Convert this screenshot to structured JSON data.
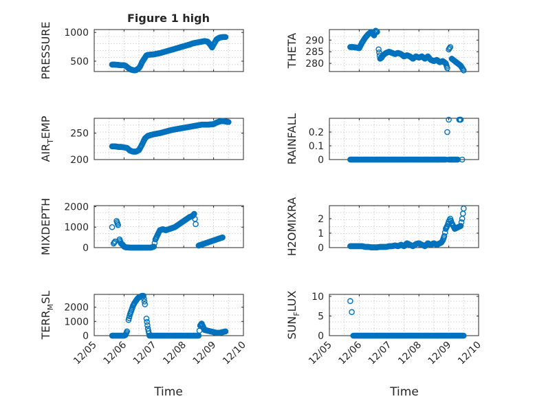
{
  "figure": {
    "title": "Figure 1 high"
  },
  "x_ticks": [
    "12/05",
    "12/06",
    "12/07",
    "12/08",
    "12/09",
    "12/10"
  ],
  "x_label": "Time",
  "colors": {
    "marker": "#0072BD",
    "axes": "#262626",
    "grid": "#cfcfcf"
  },
  "chart_data": [
    {
      "type": "scatter",
      "title": "Figure 1 high",
      "ylabel": "PRESSURE",
      "ylabel_sub": "",
      "ylabel_tail": "",
      "xlim": [
        0,
        5
      ],
      "ylim": [
        320,
        1050
      ],
      "yticks": [
        500,
        1000
      ],
      "grid": true,
      "x": [
        0.6,
        0.7,
        0.8,
        0.9,
        1.0,
        1.05,
        1.1,
        1.2,
        1.3,
        1.35,
        1.4,
        1.5,
        1.55,
        1.6,
        1.7,
        1.75,
        1.8,
        1.9,
        2.0,
        2.2,
        2.4,
        2.6,
        2.8,
        3.0,
        3.2,
        3.3,
        3.4,
        3.5,
        3.6,
        3.7,
        3.8,
        3.9,
        3.95,
        4.0,
        4.1,
        4.2,
        4.3,
        4.4
      ],
      "y": [
        440,
        440,
        435,
        430,
        430,
        420,
        400,
        360,
        345,
        340,
        345,
        380,
        420,
        480,
        560,
        600,
        610,
        615,
        620,
        640,
        670,
        700,
        730,
        760,
        790,
        810,
        820,
        830,
        840,
        850,
        840,
        780,
        740,
        790,
        880,
        910,
        920,
        920
      ]
    },
    {
      "type": "scatter",
      "title": "",
      "ylabel": "THETA",
      "ylabel_sub": "",
      "ylabel_tail": "",
      "xlim": [
        0,
        5
      ],
      "ylim": [
        276.5,
        294.5
      ],
      "yticks": [
        280,
        285,
        290
      ],
      "grid": true,
      "x": [
        0.7,
        0.8,
        0.9,
        1.0,
        1.1,
        1.2,
        1.3,
        1.4,
        1.5,
        1.55,
        1.6,
        1.65,
        1.7,
        1.75,
        1.8,
        1.9,
        2.0,
        2.1,
        2.2,
        2.3,
        2.4,
        2.5,
        2.6,
        2.7,
        2.8,
        2.9,
        3.0,
        3.1,
        3.2,
        3.3,
        3.4,
        3.5,
        3.6,
        3.7,
        3.8,
        3.9,
        3.95,
        4.0,
        4.05,
        4.1,
        4.2,
        4.3,
        4.4,
        4.45,
        4.5
      ],
      "y": [
        287,
        287,
        286.8,
        286.5,
        289,
        291,
        292.5,
        293.5,
        292,
        294,
        293.5,
        286,
        282,
        282.5,
        283.5,
        284.5,
        285,
        284.5,
        284,
        284.5,
        284,
        283,
        283.5,
        283,
        282,
        283,
        282.5,
        283,
        282,
        283,
        281.5,
        281,
        281.5,
        280.5,
        281,
        280,
        278,
        286,
        287,
        282,
        281,
        280,
        279,
        278,
        277
      ]
    },
    {
      "type": "scatter",
      "title": "",
      "ylabel": "AIR",
      "ylabel_sub": "T",
      "ylabel_tail": "EMP",
      "xlim": [
        0,
        5
      ],
      "ylim": [
        200,
        278
      ],
      "yticks": [
        200,
        250
      ],
      "grid": true,
      "x": [
        0.6,
        0.7,
        0.8,
        0.9,
        1.0,
        1.1,
        1.2,
        1.3,
        1.4,
        1.5,
        1.6,
        1.7,
        1.8,
        2.0,
        2.2,
        2.4,
        2.6,
        2.8,
        3.0,
        3.2,
        3.4,
        3.6,
        3.8,
        4.0,
        4.1,
        4.2,
        4.3,
        4.4,
        4.5
      ],
      "y": [
        225,
        225,
        224,
        224,
        223,
        222,
        217,
        215,
        215,
        218,
        228,
        240,
        245,
        248,
        250,
        253,
        256,
        258,
        260,
        262,
        264,
        266,
        266,
        267,
        270,
        272,
        273,
        272,
        271
      ]
    },
    {
      "type": "scatter",
      "title": "",
      "ylabel": "RAINFALL",
      "ylabel_sub": "",
      "ylabel_tail": "",
      "xlim": [
        0,
        5
      ],
      "ylim": [
        0,
        0.3
      ],
      "yticks": [
        0,
        0.1,
        0.2
      ],
      "grid": true,
      "x": [
        0.7,
        0.8,
        0.9,
        1.0,
        1.1,
        1.2,
        1.3,
        1.4,
        1.5,
        1.6,
        1.7,
        1.8,
        1.9,
        2.0,
        2.1,
        2.2,
        2.3,
        2.4,
        2.5,
        2.6,
        2.7,
        2.8,
        2.9,
        3.0,
        3.1,
        3.2,
        3.3,
        3.4,
        3.5,
        3.6,
        3.7,
        3.8,
        3.9,
        3.95,
        4.0,
        4.0,
        4.1,
        4.2,
        4.3,
        4.35,
        4.4,
        4.45
      ],
      "y": [
        0,
        0,
        0,
        0,
        0,
        0,
        0,
        0,
        0,
        0,
        0,
        0,
        0,
        0,
        0,
        0,
        0,
        0,
        0,
        0,
        0,
        0,
        0,
        0,
        0,
        0,
        0,
        0,
        0,
        0,
        0,
        0,
        0,
        0.2,
        0.29,
        0,
        0,
        0,
        0,
        0.29,
        0.29,
        0
      ]
    },
    {
      "type": "scatter",
      "title": "",
      "ylabel": "MIXDEPTH",
      "ylabel_sub": "",
      "ylabel_tail": "",
      "xlim": [
        0,
        5
      ],
      "ylim": [
        0,
        2050
      ],
      "yticks": [
        0,
        1000,
        2000
      ],
      "grid": true,
      "x": [
        0.6,
        0.65,
        0.7,
        0.75,
        0.8,
        0.85,
        0.9,
        0.95,
        1.0,
        1.05,
        1.1,
        1.2,
        1.3,
        1.4,
        1.5,
        1.6,
        1.7,
        1.8,
        1.9,
        2.0,
        2.05,
        2.1,
        2.2,
        2.3,
        2.4,
        2.5,
        2.6,
        2.7,
        2.8,
        2.9,
        3.0,
        3.1,
        3.2,
        3.3,
        3.35,
        3.4,
        3.5,
        3.6,
        3.7,
        3.8,
        3.9,
        4.0,
        4.1,
        4.2,
        4.3
      ],
      "y": [
        1000,
        200,
        300,
        1300,
        1100,
        400,
        200,
        150,
        50,
        20,
        10,
        0,
        0,
        0,
        0,
        0,
        0,
        0,
        0,
        50,
        400,
        550,
        850,
        900,
        850,
        900,
        950,
        1000,
        1100,
        1200,
        1300,
        1400,
        1500,
        1550,
        1650,
        1150,
        100,
        150,
        200,
        250,
        300,
        350,
        400,
        450,
        500
      ]
    },
    {
      "type": "scatter",
      "title": "",
      "ylabel": "H2OMIXRA",
      "ylabel_sub": "",
      "ylabel_tail": "",
      "xlim": [
        0,
        5
      ],
      "ylim": [
        0,
        2.9
      ],
      "yticks": [
        0,
        1,
        2
      ],
      "grid": true,
      "x": [
        0.7,
        0.8,
        0.9,
        1.0,
        1.1,
        1.2,
        1.3,
        1.4,
        1.5,
        1.6,
        1.7,
        1.8,
        1.9,
        2.0,
        2.1,
        2.2,
        2.3,
        2.4,
        2.5,
        2.6,
        2.7,
        2.8,
        2.9,
        3.0,
        3.1,
        3.2,
        3.3,
        3.4,
        3.5,
        3.6,
        3.7,
        3.75,
        3.8,
        3.85,
        3.9,
        3.95,
        4.0,
        4.05,
        4.1,
        4.15,
        4.2,
        4.3,
        4.4,
        4.45,
        4.5
      ],
      "y": [
        0.1,
        0.1,
        0.1,
        0.1,
        0.1,
        0.05,
        0.05,
        0.02,
        0.02,
        0.02,
        0.05,
        0.05,
        0.05,
        0.1,
        0.1,
        0.15,
        0.1,
        0.2,
        0.1,
        0.3,
        0.2,
        0.1,
        0.25,
        0.3,
        0.2,
        0.1,
        0.3,
        0.2,
        0.3,
        0.2,
        0.3,
        0.35,
        0.5,
        0.8,
        1.3,
        1.5,
        1.8,
        2.0,
        1.7,
        1.5,
        1.3,
        1.4,
        1.5,
        2.0,
        2.7
      ]
    },
    {
      "type": "scatter",
      "title": "",
      "ylabel": "TERR",
      "ylabel_sub": "M",
      "ylabel_tail": "SL",
      "xlim": [
        0,
        5
      ],
      "ylim": [
        0,
        2900
      ],
      "yticks": [
        0,
        1000,
        2000
      ],
      "grid": true,
      "x": [
        0.6,
        0.7,
        0.8,
        0.9,
        1.0,
        1.05,
        1.1,
        1.15,
        1.2,
        1.25,
        1.3,
        1.35,
        1.4,
        1.45,
        1.5,
        1.55,
        1.6,
        1.65,
        1.7,
        1.75,
        1.8,
        1.85,
        1.9,
        2.0,
        2.2,
        2.4,
        2.6,
        2.8,
        3.0,
        3.2,
        3.4,
        3.5,
        3.55,
        3.6,
        3.7,
        3.8,
        3.9,
        4.0,
        4.1,
        4.2,
        4.3,
        4.4
      ],
      "y": [
        0,
        0,
        0,
        0,
        0,
        50,
        300,
        1100,
        1500,
        1800,
        2100,
        2300,
        2450,
        2600,
        2700,
        2750,
        2800,
        2800,
        2200,
        1200,
        500,
        0,
        0,
        0,
        0,
        0,
        0,
        0,
        0,
        0,
        0,
        0,
        700,
        850,
        400,
        350,
        300,
        250,
        200,
        200,
        250,
        300
      ]
    },
    {
      "type": "scatter",
      "title": "",
      "ylabel": "SUN",
      "ylabel_sub": "F",
      "ylabel_tail": "LUX",
      "xlim": [
        0,
        5
      ],
      "ylim": [
        0,
        10.5
      ],
      "yticks": [
        0,
        5,
        10
      ],
      "grid": true,
      "x": [
        0.7,
        0.75,
        0.8,
        0.9,
        1.0,
        1.2,
        1.4,
        1.6,
        1.8,
        2.0,
        2.2,
        2.4,
        2.6,
        2.8,
        3.0,
        3.2,
        3.4,
        3.6,
        3.8,
        4.0,
        4.2,
        4.4,
        4.5
      ],
      "y": [
        8.8,
        6.0,
        0,
        0,
        0,
        0,
        0,
        0,
        0,
        0,
        0,
        0,
        0,
        0,
        0,
        0,
        0,
        0,
        0,
        0,
        0,
        0,
        0
      ]
    }
  ]
}
